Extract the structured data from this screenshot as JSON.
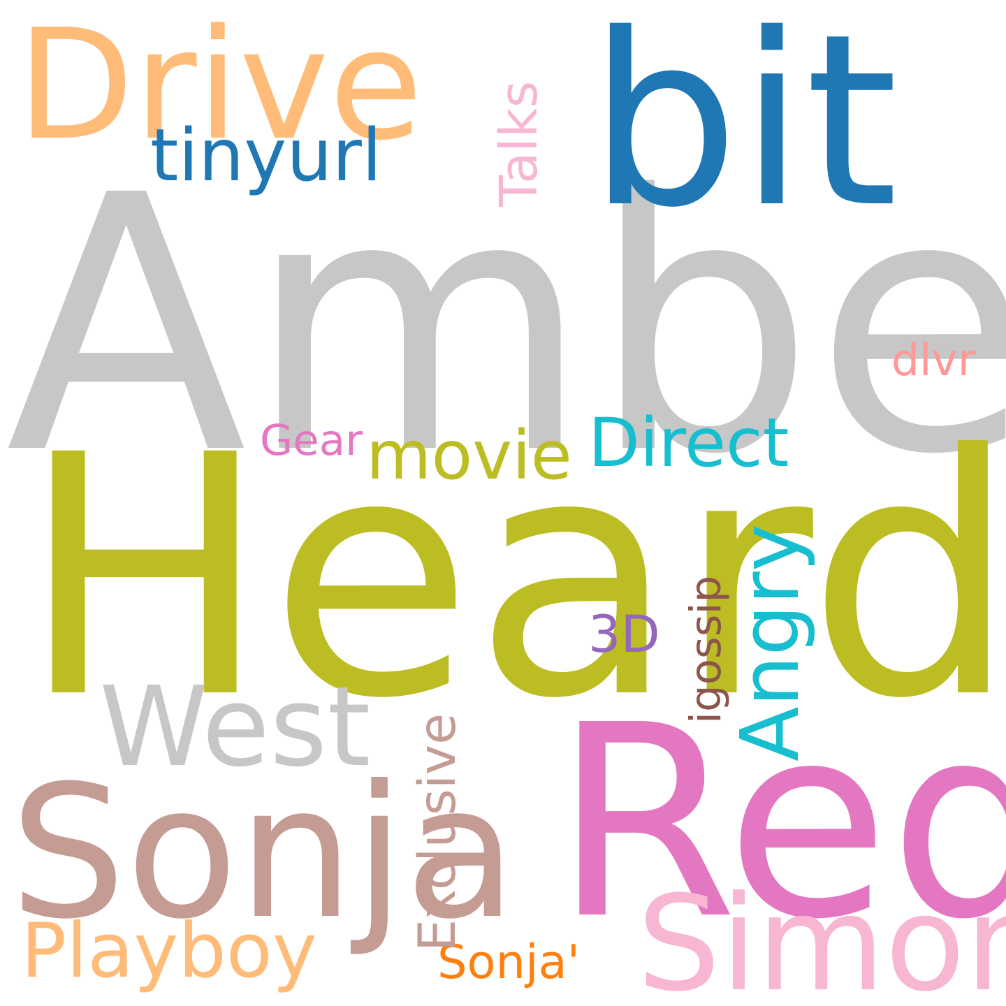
{
  "words": {
    "amber": {
      "text": "Amber",
      "color": "#c7c7c7"
    },
    "heard": {
      "text": "Heard",
      "color": "#bcbd22"
    },
    "bit": {
      "text": "bit",
      "color": "#1f77b4"
    },
    "drive": {
      "text": "Drive",
      "color": "#ffbb78"
    },
    "red": {
      "text": "Red",
      "color": "#e377c2"
    },
    "sonja": {
      "text": "Sonja",
      "color": "#c49c94"
    },
    "simon": {
      "text": "Simon",
      "color": "#f7b6d2"
    },
    "west": {
      "text": "West",
      "color": "#c7c7c7"
    },
    "playboy": {
      "text": "Playboy",
      "color": "#ffbb78"
    },
    "tinyurl": {
      "text": "tinyurl",
      "color": "#1f77b4"
    },
    "movie": {
      "text": "movie",
      "color": "#bcbd22"
    },
    "direct": {
      "text": "Direct",
      "color": "#17becf"
    },
    "gear": {
      "text": "Gear",
      "color": "#e377c2"
    },
    "dlvr": {
      "text": "dlvr",
      "color": "#ff9896"
    },
    "three_d": {
      "text": "3D",
      "color": "#9467bd"
    },
    "sonja_q": {
      "text": "Sonja'",
      "color": "#ff7f0e"
    },
    "talks": {
      "text": "Talks",
      "color": "#f7b6d2"
    },
    "angry": {
      "text": "Angry",
      "color": "#17becf"
    },
    "exclusive": {
      "text": "Exclusive",
      "color": "#c49c94"
    },
    "igossip": {
      "text": "igossip",
      "color": "#8c564b"
    }
  }
}
